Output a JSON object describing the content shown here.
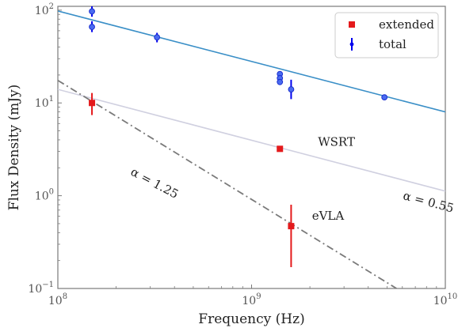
{
  "chart_data": {
    "type": "scatter",
    "xlabel": "Frequency (Hz)",
    "ylabel": "Flux Density (mJy)",
    "xscale": "log",
    "yscale": "log",
    "xlim": [
      100000000.0,
      10000000000.0
    ],
    "ylim": [
      0.1,
      110
    ],
    "grid": false,
    "legend_placement": "top-right",
    "x_ticks": [
      {
        "value": 100000000.0,
        "base": "10",
        "exp": "8"
      },
      {
        "value": 1000000000.0,
        "base": "10",
        "exp": "9"
      },
      {
        "value": 10000000000.0,
        "base": "10",
        "exp": "10"
      }
    ],
    "y_ticks": [
      {
        "value": 0.1,
        "base": "10",
        "exp": "−1"
      },
      {
        "value": 1,
        "base": "10",
        "exp": "0"
      },
      {
        "value": 10,
        "base": "10",
        "exp": "1"
      },
      {
        "value": 100,
        "base": "10",
        "exp": "2"
      }
    ],
    "series": [
      {
        "name": "extended",
        "marker": "square",
        "color": "#e41a1c",
        "points": [
          {
            "x": 150000000.0,
            "y": 10.0,
            "ylo": 7.4,
            "yhi": 12.8
          },
          {
            "x": 1400000000.0,
            "y": 3.2,
            "ylo": 3.2,
            "yhi": 3.2
          },
          {
            "x": 1600000000.0,
            "y": 0.47,
            "ylo": 0.17,
            "yhi": 0.8
          }
        ]
      },
      {
        "name": "total",
        "marker": "circle",
        "color": "#0000ee",
        "points": [
          {
            "x": 150000000.0,
            "y": 97,
            "ylo": 85,
            "yhi": 112
          },
          {
            "x": 150000000.0,
            "y": 66,
            "ylo": 58,
            "yhi": 76
          },
          {
            "x": 325000000.0,
            "y": 51,
            "ylo": 45,
            "yhi": 57
          },
          {
            "x": 1400000000.0,
            "y": 20.5,
            "ylo": 20.5,
            "yhi": 20.5
          },
          {
            "x": 1400000000.0,
            "y": 18.5,
            "ylo": 18.5,
            "yhi": 18.5
          },
          {
            "x": 1400000000.0,
            "y": 16.8,
            "ylo": 16.8,
            "yhi": 16.8
          },
          {
            "x": 1600000000.0,
            "y": 14.0,
            "ylo": 11.0,
            "yhi": 17.8
          },
          {
            "x": 4850000000.0,
            "y": 11.5,
            "ylo": 11.0,
            "yhi": 12.0
          }
        ]
      }
    ],
    "fit_lines": [
      {
        "points": [
          [
            100000000.0,
            98
          ],
          [
            10000000000.0,
            8.0
          ]
        ],
        "color": "#3a8fc7",
        "style": "solid"
      },
      {
        "points": [
          [
            100000000.0,
            14.0
          ],
          [
            10000000000.0,
            1.12
          ]
        ],
        "color": "#d0d0e0",
        "style": "solid"
      },
      {
        "points": [
          [
            100000000.0,
            17.5
          ],
          [
            5600000000.0,
            0.1
          ]
        ],
        "color": "#7a7a7a",
        "style": "dashdot"
      }
    ],
    "annotations": [
      {
        "text": "WSRT",
        "x": 2200000000.0,
        "y": 3.45,
        "rotate": 0
      },
      {
        "text": "eVLA",
        "x": 2050000000.0,
        "y": 0.55,
        "rotate": 0
      },
      {
        "text": "α = 1.25",
        "x": 235000000.0,
        "y": 1.7,
        "rotate": 28
      },
      {
        "text": "α = 0.55",
        "x": 6000000000.0,
        "y": 0.92,
        "rotate": 15
      }
    ]
  }
}
